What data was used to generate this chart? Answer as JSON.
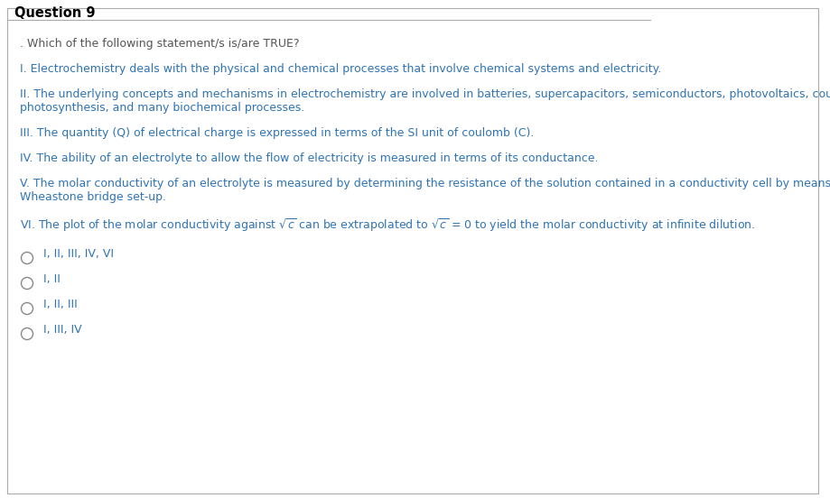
{
  "title": "Question 9",
  "background_color": "#ffffff",
  "border_color": "#aaaaaa",
  "title_color": "#000000",
  "title_fontsize": 10.5,
  "text_color": "#2e74b5",
  "question_color": "#555555",
  "text_fontsize": 9.0,
  "question_text": ". Which of the following statement/s is/are TRUE?",
  "choices": [
    "I, II, III, IV, VI",
    "I, II",
    "I, II, III",
    "I, III, IV"
  ],
  "fig_width": 9.2,
  "fig_height": 5.52,
  "dpi": 100
}
